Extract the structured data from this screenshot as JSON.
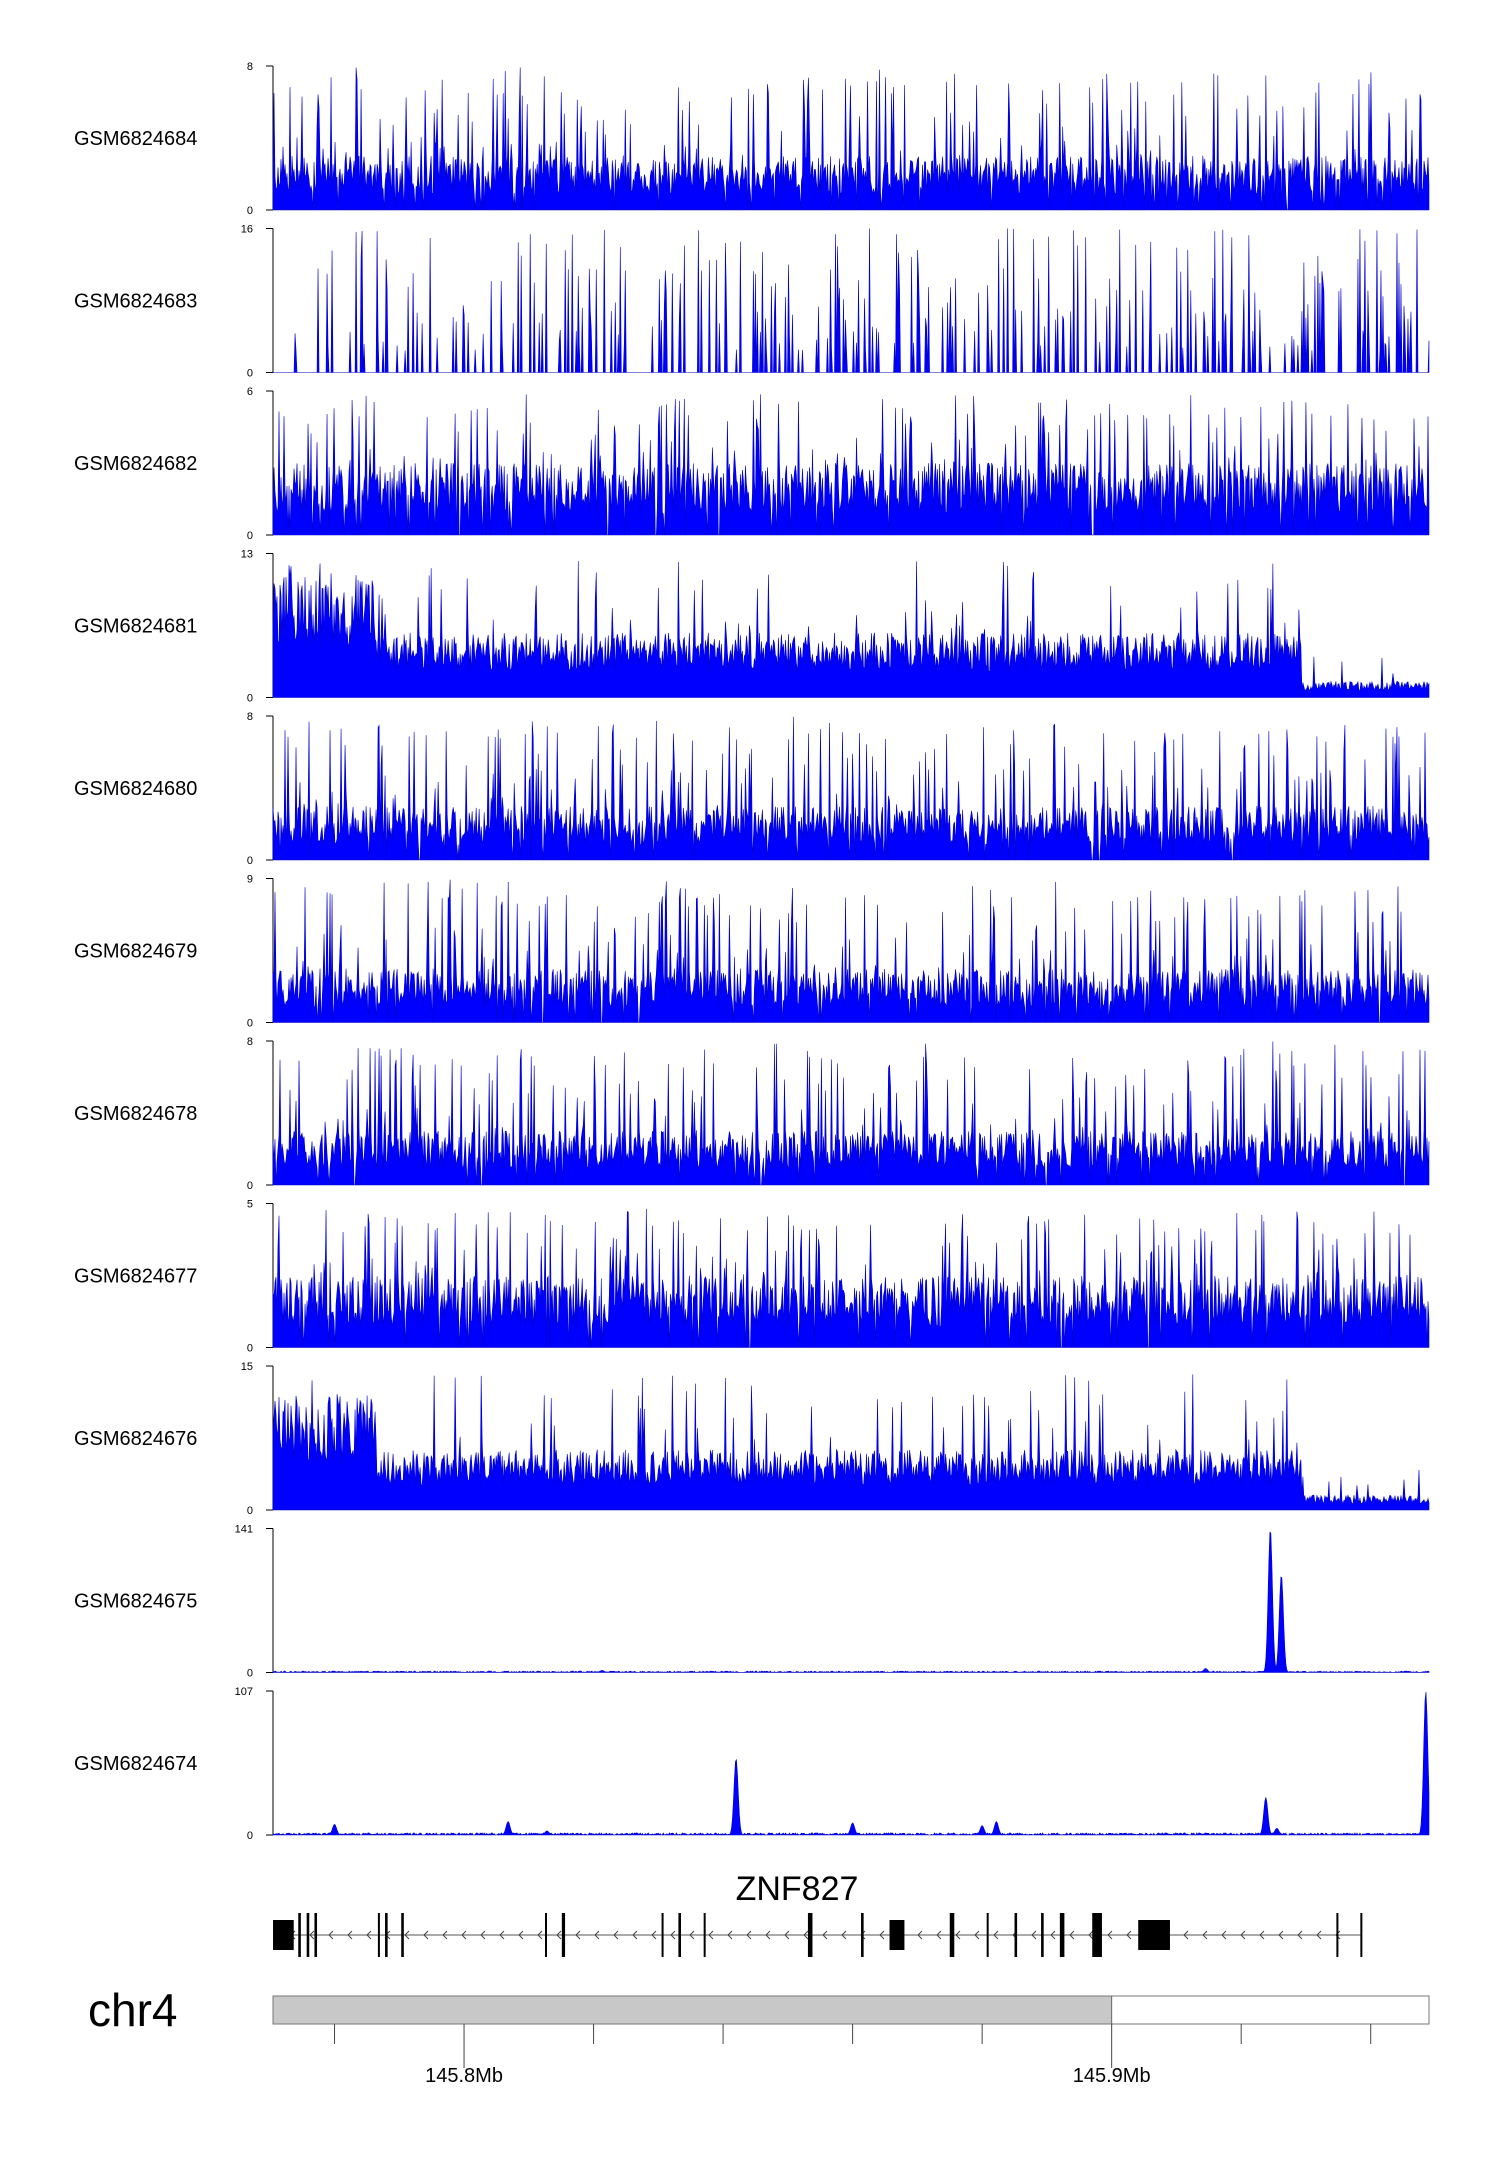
{
  "chart_data": {
    "type": "area",
    "tracks": [
      {
        "name": "GSM6824684",
        "ymin": 0,
        "ymax": 8,
        "profile": "noisy",
        "seed": 684,
        "level": 0.3
      },
      {
        "name": "GSM6824683",
        "ymin": 0,
        "ymax": 16,
        "profile": "sparse",
        "seed": 683,
        "level": 0.3
      },
      {
        "name": "GSM6824682",
        "ymin": 0,
        "ymax": 6,
        "profile": "noisy",
        "seed": 682,
        "level": 0.4
      },
      {
        "name": "GSM6824681",
        "ymin": 0,
        "ymax": 13,
        "profile": "dense",
        "seed": 681,
        "level": 0.3
      },
      {
        "name": "GSM6824680",
        "ymin": 0,
        "ymax": 8,
        "profile": "noisy",
        "seed": 680,
        "level": 0.3
      },
      {
        "name": "GSM6824679",
        "ymin": 0,
        "ymax": 9,
        "profile": "noisy",
        "seed": 679,
        "level": 0.3
      },
      {
        "name": "GSM6824678",
        "ymin": 0,
        "ymax": 8,
        "profile": "noisy",
        "seed": 678,
        "level": 0.3
      },
      {
        "name": "GSM6824677",
        "ymin": 0,
        "ymax": 5,
        "profile": "noisy",
        "seed": 677,
        "level": 0.4
      },
      {
        "name": "GSM6824676",
        "ymin": 0,
        "ymax": 15,
        "profile": "dense",
        "seed": 676,
        "level": 0.28
      },
      {
        "name": "GSM6824675",
        "ymin": 0,
        "ymax": 141,
        "profile": "peaks",
        "seed": 675,
        "level": 0.01,
        "peaks": [
          {
            "pos": 145.8213,
            "height": 2
          },
          {
            "pos": 145.9145,
            "height": 4
          },
          {
            "pos": 145.9245,
            "height": 141
          },
          {
            "pos": 145.9262,
            "height": 96
          }
        ]
      },
      {
        "name": "GSM6824674",
        "ymin": 0,
        "ymax": 107,
        "profile": "peaks",
        "seed": 674,
        "level": 0.015,
        "peaks": [
          {
            "pos": 145.78,
            "height": 8
          },
          {
            "pos": 145.8068,
            "height": 10
          },
          {
            "pos": 145.8128,
            "height": 3
          },
          {
            "pos": 145.842,
            "height": 57
          },
          {
            "pos": 145.86,
            "height": 9
          },
          {
            "pos": 145.88,
            "height": 7
          },
          {
            "pos": 145.8822,
            "height": 10
          },
          {
            "pos": 145.9238,
            "height": 28
          },
          {
            "pos": 145.9255,
            "height": 5
          },
          {
            "pos": 145.9485,
            "height": 107
          }
        ]
      }
    ],
    "xlim": [
      145.7705,
      145.949
    ],
    "line_color": "#0000cc",
    "fill_color": "#0000ff",
    "gene": {
      "name": "ZNF827",
      "strand": "-",
      "start": 145.7705,
      "end": 145.9385,
      "exons": [
        [
          145.7705,
          145.7737
        ],
        [
          145.7744,
          145.7748
        ],
        [
          145.7757,
          145.7761
        ],
        [
          145.7769,
          145.7773
        ],
        [
          145.7867,
          145.787
        ],
        [
          145.7878,
          145.7882
        ],
        [
          145.7903,
          145.7907
        ],
        [
          145.8125,
          145.8128
        ],
        [
          145.8151,
          145.8156
        ],
        [
          145.8305,
          145.8308
        ],
        [
          145.8331,
          145.8335
        ],
        [
          145.837,
          145.8373
        ],
        [
          145.8531,
          145.8538
        ],
        [
          145.8613,
          145.8617
        ],
        [
          145.8657,
          145.868
        ],
        [
          145.875,
          145.8757
        ],
        [
          145.8807,
          145.881
        ],
        [
          145.885,
          145.8854
        ],
        [
          145.8891,
          145.8895
        ],
        [
          145.892,
          145.8927
        ],
        [
          145.897,
          145.8985
        ],
        [
          145.9041,
          145.909
        ],
        [
          145.9347,
          145.935
        ],
        [
          145.9384,
          145.9386
        ]
      ]
    },
    "ideogram": {
      "chromosome": "chr4",
      "shaded_start": 145.7705,
      "shaded_end": 145.9,
      "shaded_color": "#c8c8c8"
    },
    "x_axis": {
      "ticks": [
        145.78,
        145.8,
        145.82,
        145.84,
        145.86,
        145.88,
        145.9,
        145.92,
        145.94
      ],
      "labels": [
        "145.8Mb",
        "145.9Mb"
      ],
      "label_positions": [
        145.8,
        145.9
      ]
    }
  }
}
